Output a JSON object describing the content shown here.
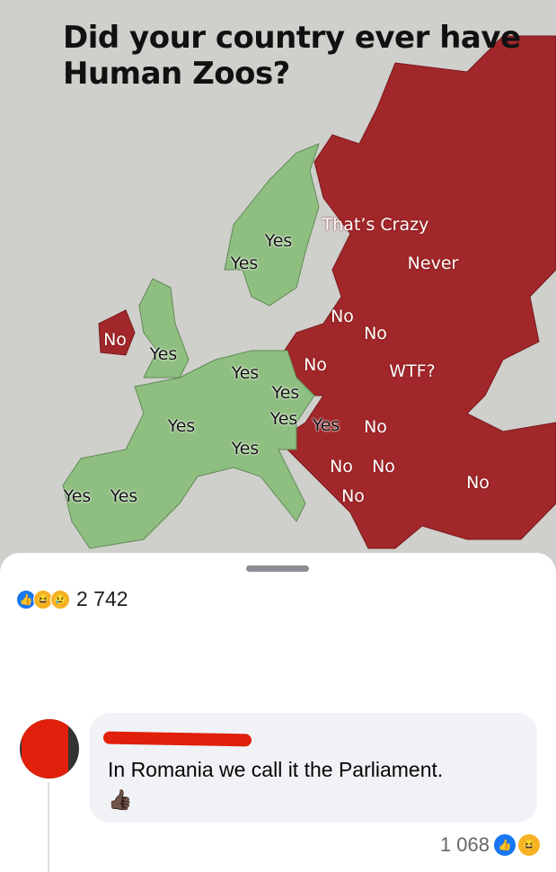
{
  "map": {
    "title_line1": "Did your country ever have",
    "title_line2": "Human Zoos?",
    "colors": {
      "yes": "#8fbf80",
      "no": "#a1272a",
      "background": "#cfcfcc"
    },
    "labels": [
      {
        "text": "Yes",
        "answer": "yes"
      },
      {
        "text": "Yes",
        "answer": "yes"
      },
      {
        "text": "That’s Crazy",
        "answer": "no"
      },
      {
        "text": "Never",
        "answer": "no"
      },
      {
        "text": "No",
        "answer": "no"
      },
      {
        "text": "No",
        "answer": "no"
      },
      {
        "text": "No",
        "answer": "no"
      },
      {
        "text": "Yes",
        "answer": "yes"
      },
      {
        "text": "Yes",
        "answer": "yes"
      },
      {
        "text": "No",
        "answer": "no"
      },
      {
        "text": "WTF?",
        "answer": "no"
      },
      {
        "text": "Yes",
        "answer": "yes"
      },
      {
        "text": "Yes",
        "answer": "yes"
      },
      {
        "text": "Yes",
        "answer": "yes"
      },
      {
        "text": "Yes",
        "answer": "yes"
      },
      {
        "text": "No",
        "answer": "no"
      },
      {
        "text": "Yes",
        "answer": "yes"
      },
      {
        "text": "No",
        "answer": "no"
      },
      {
        "text": "No",
        "answer": "no"
      },
      {
        "text": "No",
        "answer": "no"
      },
      {
        "text": "Yes",
        "answer": "yes"
      },
      {
        "text": "Yes",
        "answer": "yes"
      },
      {
        "text": "No",
        "answer": "no"
      }
    ]
  },
  "post": {
    "reactions": [
      "like",
      "haha",
      "sad"
    ],
    "reaction_count": "2 742"
  },
  "comment": {
    "text": "In Romania we call it the Parliament.",
    "emoji": "👍🏿",
    "reaction_count": "1 068",
    "reactions": [
      "like",
      "haha"
    ]
  }
}
